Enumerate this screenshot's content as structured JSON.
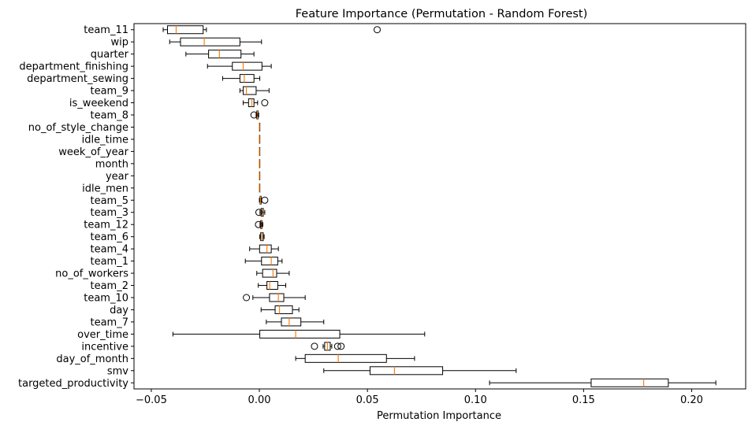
{
  "chart_data": {
    "type": "boxplot",
    "orientation": "horizontal",
    "title": "Feature Importance (Permutation - Random Forest)",
    "xlabel": "Permutation Importance",
    "ylabel": "",
    "xlim": [
      -0.058,
      0.225
    ],
    "xticks": [
      -0.05,
      0.0,
      0.05,
      0.1,
      0.15,
      0.2
    ],
    "xtick_labels": [
      "−0.05",
      "0.00",
      "0.05",
      "0.10",
      "0.15",
      "0.20"
    ],
    "grid": false,
    "colors": {
      "box": "#000000",
      "median": "#ff7f0e",
      "outlier": "#000000"
    },
    "categories": [
      {
        "name": "team_11",
        "whislo": -0.0445,
        "q1": -0.0425,
        "med": -0.0385,
        "q3": -0.026,
        "whishi": -0.0245,
        "fliers": [
          0.0545
        ]
      },
      {
        "name": "wip",
        "whislo": -0.0415,
        "q1": -0.0365,
        "med": -0.0255,
        "q3": -0.009,
        "whishi": 0.001,
        "fliers": []
      },
      {
        "name": "quarter",
        "whislo": -0.034,
        "q1": -0.0235,
        "med": -0.0185,
        "q3": -0.0085,
        "whishi": -0.0025,
        "fliers": []
      },
      {
        "name": "department_finishing",
        "whislo": -0.024,
        "q1": -0.0125,
        "med": -0.0075,
        "q3": 0.0012,
        "whishi": 0.0055,
        "fliers": []
      },
      {
        "name": "department_sewing",
        "whislo": -0.017,
        "q1": -0.009,
        "med": -0.007,
        "q3": -0.0025,
        "whishi": 0.0002,
        "fliers": []
      },
      {
        "name": "team_9",
        "whislo": -0.009,
        "q1": -0.0075,
        "med": -0.006,
        "q3": -0.0015,
        "whishi": 0.0045,
        "fliers": []
      },
      {
        "name": "is_weekend",
        "whislo": -0.0075,
        "q1": -0.005,
        "med": -0.0035,
        "q3": -0.0025,
        "whishi": -0.0008,
        "fliers": [
          0.0025
        ]
      },
      {
        "name": "team_8",
        "whislo": -0.0015,
        "q1": -0.0012,
        "med": -0.0009,
        "q3": -0.0006,
        "whishi": -0.0003,
        "fliers": [
          -0.0025
        ]
      },
      {
        "name": "no_of_style_change",
        "whislo": 0.0,
        "q1": 0.0,
        "med": 0.0,
        "q3": 0.0,
        "whishi": 0.0,
        "fliers": []
      },
      {
        "name": "idle_time",
        "whislo": 0.0,
        "q1": 0.0,
        "med": 0.0,
        "q3": 0.0,
        "whishi": 0.0,
        "fliers": []
      },
      {
        "name": "week_of_year",
        "whislo": 0.0,
        "q1": 0.0,
        "med": 0.0,
        "q3": 0.0,
        "whishi": 0.0,
        "fliers": []
      },
      {
        "name": "month",
        "whislo": 0.0,
        "q1": 0.0,
        "med": 0.0,
        "q3": 0.0,
        "whishi": 0.0,
        "fliers": []
      },
      {
        "name": "year",
        "whislo": 0.0,
        "q1": 0.0,
        "med": 0.0,
        "q3": 0.0,
        "whishi": 0.0,
        "fliers": []
      },
      {
        "name": "idle_men",
        "whislo": 0.0,
        "q1": 0.0,
        "med": 0.0,
        "q3": 0.0,
        "whishi": 0.0,
        "fliers": []
      },
      {
        "name": "team_5",
        "whislo": 0.0,
        "q1": 0.0003,
        "med": 0.0005,
        "q3": 0.0008,
        "whishi": 0.001,
        "fliers": [
          0.0025
        ]
      },
      {
        "name": "team_3",
        "whislo": 0.0003,
        "q1": 0.0008,
        "med": 0.0012,
        "q3": 0.0018,
        "whishi": 0.0025,
        "fliers": [
          -0.0002
        ]
      },
      {
        "name": "team_12",
        "whislo": 0.0003,
        "q1": 0.0006,
        "med": 0.0009,
        "q3": 0.0012,
        "whishi": 0.0016,
        "fliers": [
          -0.0004
        ]
      },
      {
        "name": "team_6",
        "whislo": 0.0002,
        "q1": 0.0006,
        "med": 0.0012,
        "q3": 0.0018,
        "whishi": 0.0022,
        "fliers": []
      },
      {
        "name": "team_4",
        "whislo": -0.0045,
        "q1": 0.0001,
        "med": 0.0035,
        "q3": 0.0055,
        "whishi": 0.0088,
        "fliers": []
      },
      {
        "name": "team_1",
        "whislo": -0.0065,
        "q1": 0.001,
        "med": 0.0055,
        "q3": 0.0085,
        "whishi": 0.0105,
        "fliers": []
      },
      {
        "name": "no_of_workers",
        "whislo": -0.0012,
        "q1": 0.0015,
        "med": 0.0063,
        "q3": 0.008,
        "whishi": 0.0138,
        "fliers": []
      },
      {
        "name": "team_2",
        "whislo": -0.0005,
        "q1": 0.0035,
        "med": 0.0048,
        "q3": 0.0085,
        "whishi": 0.0122,
        "fliers": []
      },
      {
        "name": "team_10",
        "whislo": -0.003,
        "q1": 0.0047,
        "med": 0.0088,
        "q3": 0.0113,
        "whishi": 0.0212,
        "fliers": [
          -0.006
        ]
      },
      {
        "name": "day",
        "whislo": 0.0008,
        "q1": 0.0073,
        "med": 0.0093,
        "q3": 0.0153,
        "whishi": 0.0183,
        "fliers": []
      },
      {
        "name": "team_7",
        "whislo": 0.0032,
        "q1": 0.0102,
        "med": 0.0138,
        "q3": 0.0192,
        "whishi": 0.0298,
        "fliers": []
      },
      {
        "name": "over_time",
        "whislo": -0.04,
        "q1": 0.0002,
        "med": 0.0168,
        "q3": 0.0372,
        "whishi": 0.0765,
        "fliers": []
      },
      {
        "name": "incentive",
        "whislo": 0.0295,
        "q1": 0.0302,
        "med": 0.0315,
        "q3": 0.0328,
        "whishi": 0.0335,
        "fliers": [
          0.0255,
          0.0362,
          0.0378
        ]
      },
      {
        "name": "day_of_month",
        "whislo": 0.0168,
        "q1": 0.0212,
        "med": 0.0365,
        "q3": 0.0588,
        "whishi": 0.0718,
        "fliers": []
      },
      {
        "name": "smv",
        "whislo": 0.0298,
        "q1": 0.0512,
        "med": 0.0625,
        "q3": 0.0848,
        "whishi": 0.1188,
        "fliers": []
      },
      {
        "name": "targeted_productivity",
        "whislo": 0.1065,
        "q1": 0.1535,
        "med": 0.1778,
        "q3": 0.1892,
        "whishi": 0.2112,
        "fliers": []
      }
    ]
  }
}
